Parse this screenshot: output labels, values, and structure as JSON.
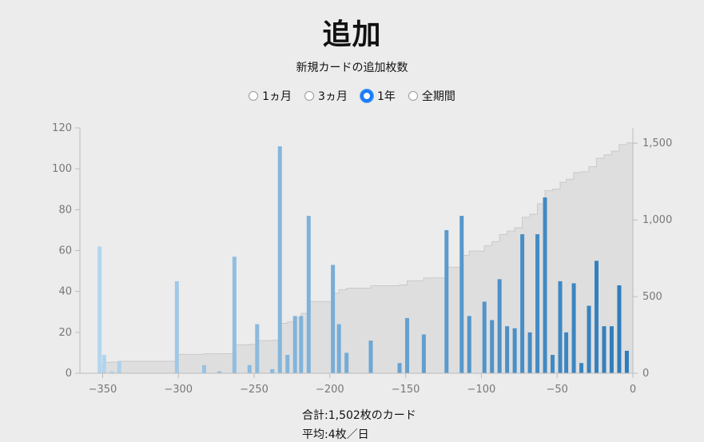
{
  "title": "追加",
  "subtitle": "新規カードの追加枚数",
  "ranges": [
    {
      "label": "1ヵ月",
      "checked": false
    },
    {
      "label": "3ヵ月",
      "checked": false
    },
    {
      "label": "1年",
      "checked": true
    },
    {
      "label": "全期間",
      "checked": false
    }
  ],
  "summary": {
    "total_label": "合計:",
    "total_value": "1,502枚のカード",
    "avg_label": "平均:",
    "avg_value": "4枚／日"
  },
  "chart_data": {
    "type": "bar",
    "title": "",
    "xlabel": "",
    "ylabel": "",
    "xlim": [
      -365,
      0
    ],
    "ylim": [
      0,
      120
    ],
    "y2lim": [
      0,
      1600
    ],
    "x_ticks": [
      "−350",
      "−300",
      "−250",
      "−200",
      "−150",
      "−100",
      "−50",
      "0"
    ],
    "y_ticks": [
      "0",
      "20",
      "40",
      "60",
      "80",
      "100",
      "120"
    ],
    "y2_ticks": [
      "0",
      "500",
      "1,000",
      "1,500"
    ],
    "bar_color_start": "#b8d8ef",
    "bar_color_end": "#2c7bbb",
    "area_color": "#dcdcdc",
    "bars": [
      {
        "x": -352,
        "y": 62
      },
      {
        "x": -349,
        "y": 9
      },
      {
        "x": -344,
        "y": 1
      },
      {
        "x": -339,
        "y": 6
      },
      {
        "x": -301,
        "y": 45
      },
      {
        "x": -283,
        "y": 4
      },
      {
        "x": -273,
        "y": 1
      },
      {
        "x": -263,
        "y": 57
      },
      {
        "x": -253,
        "y": 4
      },
      {
        "x": -248,
        "y": 24
      },
      {
        "x": -238,
        "y": 2
      },
      {
        "x": -233,
        "y": 111
      },
      {
        "x": -228,
        "y": 9
      },
      {
        "x": -223,
        "y": 28
      },
      {
        "x": -219,
        "y": 28
      },
      {
        "x": -214,
        "y": 77
      },
      {
        "x": -198,
        "y": 53
      },
      {
        "x": -194,
        "y": 24
      },
      {
        "x": -189,
        "y": 10
      },
      {
        "x": -173,
        "y": 16
      },
      {
        "x": -154,
        "y": 5
      },
      {
        "x": -149,
        "y": 27
      },
      {
        "x": -138,
        "y": 19
      },
      {
        "x": -123,
        "y": 70
      },
      {
        "x": -113,
        "y": 77
      },
      {
        "x": -108,
        "y": 28
      },
      {
        "x": -98,
        "y": 35
      },
      {
        "x": -93,
        "y": 26
      },
      {
        "x": -88,
        "y": 46
      },
      {
        "x": -83,
        "y": 23
      },
      {
        "x": -78,
        "y": 22
      },
      {
        "x": -73,
        "y": 68
      },
      {
        "x": -68,
        "y": 20
      },
      {
        "x": -63,
        "y": 68
      },
      {
        "x": -58,
        "y": 86
      },
      {
        "x": -53,
        "y": 9
      },
      {
        "x": -48,
        "y": 45
      },
      {
        "x": -44,
        "y": 20
      },
      {
        "x": -39,
        "y": 44
      },
      {
        "x": -34,
        "y": 5
      },
      {
        "x": -29,
        "y": 33
      },
      {
        "x": -24,
        "y": 55
      },
      {
        "x": -19,
        "y": 23
      },
      {
        "x": -14,
        "y": 23
      },
      {
        "x": -9,
        "y": 43
      },
      {
        "x": -4,
        "y": 11
      }
    ]
  }
}
